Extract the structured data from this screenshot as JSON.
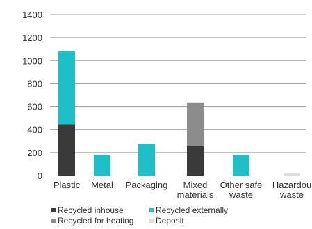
{
  "chart_data": {
    "type": "bar",
    "stacked": true,
    "title": "",
    "xlabel": "",
    "ylabel": "",
    "ylim": [
      0,
      1400
    ],
    "yticks": [
      0,
      200,
      400,
      600,
      800,
      1000,
      1200,
      1400
    ],
    "grid": true,
    "legend_position": "bottom",
    "categories": [
      [
        "Plastic"
      ],
      [
        "Metal"
      ],
      [
        "Packaging"
      ],
      [
        "Mixed",
        "materials"
      ],
      [
        "Other safe",
        "waste"
      ],
      [
        "Hazardou",
        "waste"
      ]
    ],
    "series": [
      {
        "name": "Recycled inhouse",
        "color": "#3a3a3a",
        "values": [
          445,
          0,
          0,
          255,
          0,
          0
        ]
      },
      {
        "name": "Recycled externally",
        "color": "#1fbfc8",
        "values": [
          635,
          180,
          275,
          0,
          180,
          0
        ]
      },
      {
        "name": "Recycled for heating",
        "color": "#8c8c8c",
        "values": [
          0,
          0,
          0,
          380,
          0,
          0
        ]
      },
      {
        "name": "Deposit",
        "color": "#dddddd",
        "values": [
          0,
          0,
          0,
          0,
          0,
          18
        ]
      }
    ]
  }
}
